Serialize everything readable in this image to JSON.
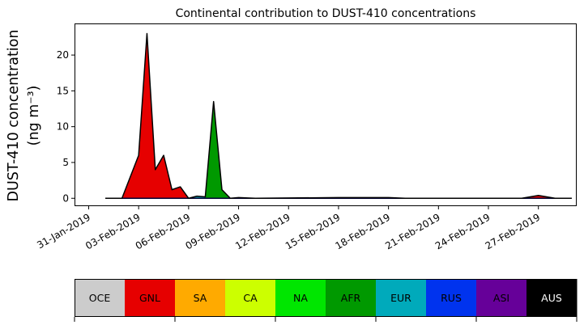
{
  "chart_data": {
    "type": "area",
    "title": "Continental contribution to DUST-410 concentrations",
    "ylabel_line1": "DUST-410 concentration",
    "ylabel_line2": "(ng m⁻³)",
    "xlabel": "",
    "ylim": [
      -1.1,
      24.3
    ],
    "yticks": [
      0,
      5,
      10,
      15,
      20
    ],
    "xtick_labels": [
      "31-Jan-2019",
      "03-Feb-2019",
      "06-Feb-2019",
      "09-Feb-2019",
      "12-Feb-2019",
      "15-Feb-2019",
      "18-Feb-2019",
      "21-Feb-2019",
      "24-Feb-2019",
      "27-Feb-2019"
    ],
    "x": [
      "01-Feb-2019",
      "02-Feb-2019",
      "03-Feb-2019",
      "03-Feb-2019 12:00",
      "04-Feb-2019",
      "04-Feb-2019 12:00",
      "05-Feb-2019",
      "05-Feb-2019 12:00",
      "06-Feb-2019",
      "06-Feb-2019 12:00",
      "07-Feb-2019",
      "07-Feb-2019 12:00",
      "08-Feb-2019",
      "08-Feb-2019 12:00",
      "09-Feb-2019",
      "10-Feb-2019",
      "15-Feb-2019",
      "16-Feb-2019",
      "17-Feb-2019",
      "18-Feb-2019",
      "19-Feb-2019",
      "26-Feb-2019",
      "27-Feb-2019",
      "28-Feb-2019",
      "01-Mar-2019"
    ],
    "series": [
      {
        "name": "GNL",
        "values": [
          0,
          0,
          6,
          23,
          4,
          6,
          1.2,
          1.6,
          0,
          0,
          0,
          0,
          0,
          0,
          0,
          0,
          0,
          0,
          0.1,
          0.1,
          0,
          0,
          0.4,
          0,
          0
        ]
      },
      {
        "name": "AFR",
        "values": [
          0,
          0,
          0,
          0,
          0,
          0,
          0,
          0,
          0,
          0.1,
          0,
          13.5,
          1.2,
          0,
          0.1,
          0,
          0.1,
          0.1,
          0,
          0,
          0,
          0,
          0,
          0,
          0
        ]
      },
      {
        "name": "EUR",
        "values": [
          0,
          0,
          0,
          0,
          0,
          0,
          0,
          0,
          0,
          0.2,
          0.2,
          0,
          0,
          0,
          0,
          0,
          0,
          0,
          0,
          0,
          0,
          0,
          0,
          0,
          0
        ]
      }
    ],
    "colorbar": {
      "labels": [
        "OCE",
        "GNL",
        "SA",
        "CA",
        "NA",
        "AFR",
        "EUR",
        "RUS",
        "ASI",
        "AUS"
      ],
      "colors": [
        "#cccccc",
        "#e60000",
        "#ffaa00",
        "#ccff00",
        "#00e600",
        "#009900",
        "#00aabb",
        "#0033ee",
        "#660099",
        "#000000"
      ],
      "text_colors": [
        "#000000",
        "#000000",
        "#000000",
        "#000000",
        "#000000",
        "#000000",
        "#000000",
        "#000000",
        "#000000",
        "#ffffff"
      ]
    }
  }
}
